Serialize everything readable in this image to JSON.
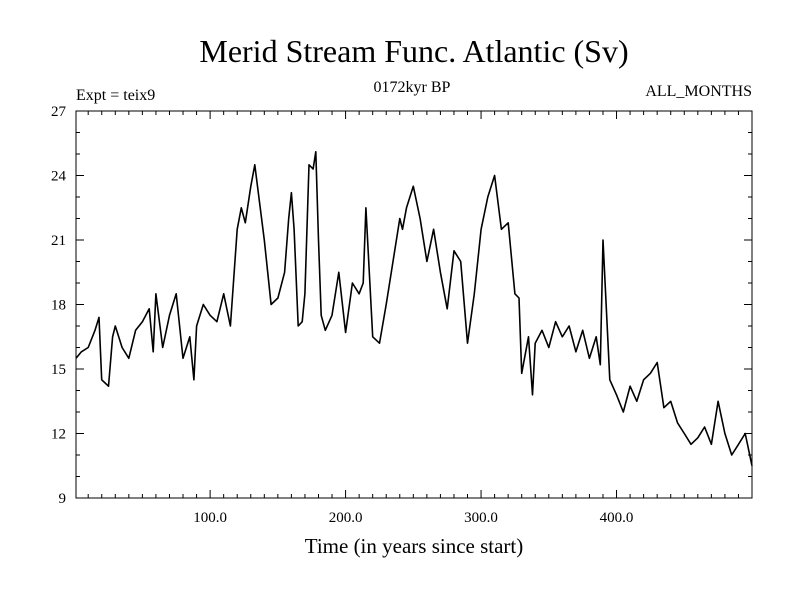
{
  "chart_data": {
    "type": "line",
    "title": "Merid Stream Func. Atlantic (Sv)",
    "header_left": "Expt = teix9",
    "header_center": "0172kyr BP",
    "header_right": "ALL_MONTHS",
    "xlabel": "Time (in years since start)",
    "ylabel": "",
    "xlim": [
      1,
      500
    ],
    "ylim": [
      9,
      27
    ],
    "x_ticks": [
      100,
      200,
      300,
      400
    ],
    "x_tick_labels": [
      "100.0",
      "200.0",
      "300.0",
      "400.0"
    ],
    "y_ticks": [
      9,
      12,
      15,
      18,
      21,
      24,
      27
    ],
    "y_tick_labels": [
      "9",
      "12",
      "15",
      "18",
      "21",
      "24",
      "27"
    ],
    "grid": false,
    "line_color": "#000000",
    "series": [
      {
        "x": [
          1,
          5,
          10,
          15,
          18,
          20,
          25,
          28,
          30,
          35,
          40,
          45,
          50,
          55,
          58,
          60,
          65,
          70,
          75,
          80,
          85,
          88,
          90,
          95,
          100,
          105,
          110,
          115,
          120,
          123,
          126,
          130,
          133,
          135,
          140,
          145,
          150,
          155,
          158,
          160,
          162,
          165,
          168,
          170,
          173,
          176,
          178,
          180,
          182,
          185,
          190,
          195,
          200,
          205,
          210,
          213,
          215,
          220,
          225,
          230,
          235,
          240,
          242,
          245,
          250,
          255,
          260,
          265,
          270,
          275,
          280,
          285,
          290,
          295,
          300,
          305,
          310,
          315,
          320,
          325,
          328,
          330,
          335,
          338,
          340,
          345,
          350,
          355,
          360,
          365,
          370,
          375,
          380,
          385,
          388,
          390,
          395,
          400,
          405,
          410,
          415,
          420,
          425,
          430,
          435,
          440,
          445,
          450,
          455,
          460,
          465,
          470,
          475,
          480,
          485,
          490,
          495,
          500
        ],
        "y": [
          15.5,
          15.8,
          16.0,
          16.8,
          17.4,
          14.5,
          14.2,
          16.5,
          17.0,
          16.0,
          15.5,
          16.8,
          17.2,
          17.8,
          15.8,
          18.5,
          16.0,
          17.5,
          18.5,
          15.5,
          16.5,
          14.5,
          17.0,
          18.0,
          17.5,
          17.2,
          18.5,
          17.0,
          21.5,
          22.5,
          21.8,
          23.5,
          24.5,
          23.5,
          21.0,
          18.0,
          18.3,
          19.5,
          22.0,
          23.2,
          21.5,
          17.0,
          17.2,
          18.5,
          24.5,
          24.3,
          25.1,
          21.0,
          17.5,
          16.8,
          17.5,
          19.5,
          16.7,
          19.0,
          18.5,
          19.0,
          22.5,
          16.5,
          16.2,
          18.0,
          20.0,
          22.0,
          21.5,
          22.5,
          23.5,
          22.0,
          20.0,
          21.5,
          19.5,
          17.8,
          20.5,
          20.0,
          16.2,
          18.5,
          21.5,
          23.0,
          24.0,
          21.5,
          21.8,
          18.5,
          18.3,
          14.8,
          16.5,
          13.8,
          16.2,
          16.8,
          16.0,
          17.2,
          16.5,
          17.0,
          15.8,
          16.8,
          15.5,
          16.5,
          15.2,
          21.0,
          14.5,
          13.8,
          13.0,
          14.2,
          13.5,
          14.5,
          14.8,
          15.3,
          13.2,
          13.5,
          12.5,
          12.0,
          11.5,
          11.8,
          12.3,
          11.5,
          13.5,
          12.0,
          11.0,
          11.5,
          12.0,
          10.5
        ]
      }
    ]
  }
}
